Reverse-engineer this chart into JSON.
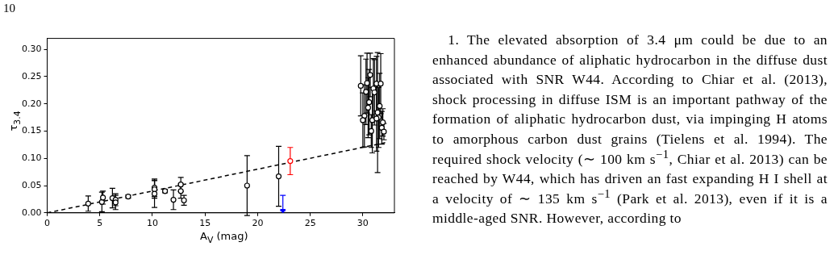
{
  "chart_data": {
    "type": "scatter",
    "xlabel": "A$_{V}$ (mag)",
    "ylabel": "τ$_{3.4}$",
    "xlim": [
      0,
      33
    ],
    "ylim": [
      0,
      0.32
    ],
    "xticks": [
      0,
      5,
      10,
      15,
      20,
      25,
      30
    ],
    "yticks": [
      {
        "value": 0,
        "label": "0.00"
      },
      {
        "value": 0.05,
        "label": "0.05"
      },
      {
        "value": 0.1,
        "label": "0.10"
      },
      {
        "value": 0.15,
        "label": "0.15"
      },
      {
        "value": 0.2,
        "label": "0.20"
      },
      {
        "value": 0.25,
        "label": "0.25"
      },
      {
        "value": 0.3,
        "label": "0.30"
      }
    ],
    "grid": false,
    "legend": false,
    "series": [
      {
        "color": "#000000",
        "marker": "circle",
        "x": [
          3.9,
          5.2,
          5.3,
          6.2,
          6.5,
          6.5,
          7.7,
          10.2,
          10.2,
          10.2,
          11.2,
          12.0,
          12.7,
          12.7,
          13.0,
          19.0,
          22.0,
          29.8,
          30.15,
          30.0,
          30.4,
          30.3,
          30.6,
          30.5,
          30.7,
          30.8,
          30.9,
          31.0,
          31.1,
          31.3,
          31.4,
          31.5,
          31.3,
          31.7,
          31.6,
          31.9,
          31.8,
          32.0
        ],
        "values": [
          0.017,
          0.02,
          0.028,
          0.027,
          0.024,
          0.019,
          0.03,
          0.046,
          0.043,
          0.035,
          0.04,
          0.024,
          0.052,
          0.04,
          0.023,
          0.05,
          0.067,
          0.233,
          0.178,
          0.17,
          0.238,
          0.222,
          0.203,
          0.193,
          0.253,
          0.15,
          0.17,
          0.228,
          0.221,
          0.237,
          0.184,
          0.175,
          0.173,
          0.237,
          0.196,
          0.166,
          0.156,
          0.149
        ],
        "errors": [
          0.014,
          0.018,
          0.012,
          0.018,
          0.011,
          0.013,
          0.003,
          0.016,
          0.016,
          0.025,
          0.003,
          0.018,
          0.013,
          0.013,
          0.009,
          0.055,
          0.055,
          0.055,
          0.057,
          0.05,
          0.055,
          0.06,
          0.06,
          0.055,
          0.04,
          0.03,
          0.06,
          0.055,
          0.06,
          0.05,
          0.11,
          0.055,
          0.06,
          0.055,
          0.06,
          0.025,
          0.03,
          0.015
        ]
      },
      {
        "color": "#ff0000",
        "marker": "circle",
        "x": [
          23.1
        ],
        "values": [
          0.095
        ],
        "errors": [
          0.025
        ]
      },
      {
        "color": "#0000ff",
        "marker": "triangle",
        "x": [
          22.4
        ],
        "values": [
          0.004
        ],
        "errors": [
          [
            0.004,
            0.032
          ]
        ]
      },
      {
        "type": "line",
        "color": "#000000",
        "marker": "none",
        "line_style": "dashed",
        "x": [
          0,
          32.2
        ],
        "values": [
          0,
          0.129
        ]
      }
    ],
    "annotations": [
      "10",
      "1. The elevated absorption of 3.4 μm could be due to an enhanced abundance of aliphatic hydrocarbon in the diffuse dust associated with SNR W44. According to Chiar et al. (2013), shock processing in diffuse ISM is an important pathway of the formation of aliphatic hydrocarbon dust, via impinging H atoms to amorphous carbon dust grains (Tielens et al. 1994). The required shock velocity (∼ 100 km s$^{−1}$, Chiar et al. 2013) can be reached by W44, which has driven an fast expanding H I shell at a velocity of ∼ 135 km s$^{−1}$ (Park et al. 2013), even if it is a middle-aged SNR. However, according to"
    ]
  }
}
